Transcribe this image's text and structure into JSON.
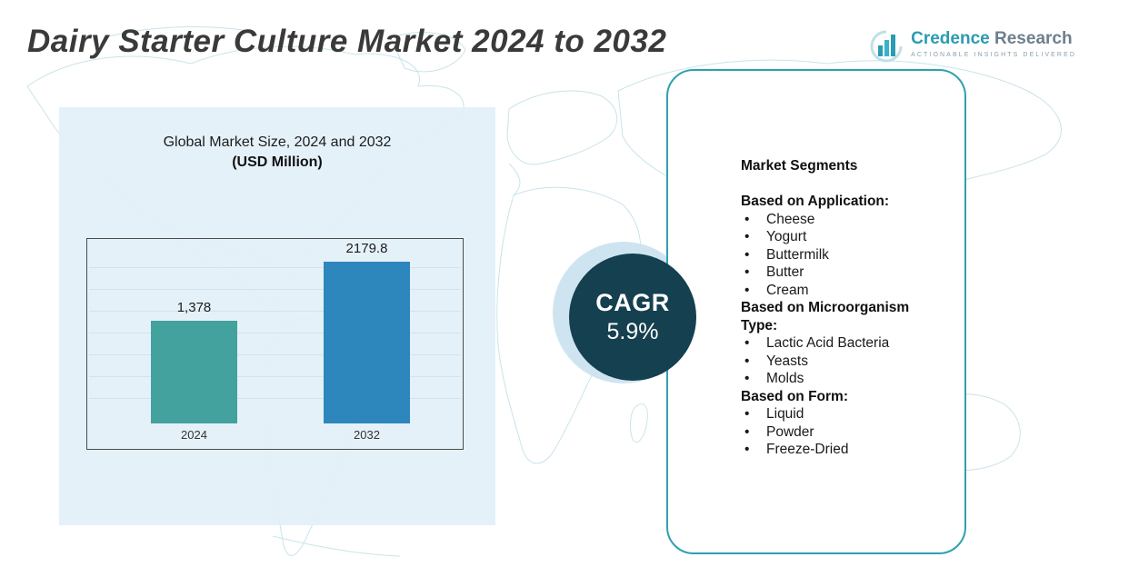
{
  "page": {
    "title": "Dairy Starter Culture Market 2024 to 2032"
  },
  "logo": {
    "name_primary": "Credence",
    "name_secondary": "Research",
    "tagline": "Actionable Insights Delivered"
  },
  "chart_panel": {
    "subtitle_line1": "Global Market Size, 2024 and 2032",
    "subtitle_line2": "(USD Million)"
  },
  "chart_data": {
    "type": "bar",
    "title": "Global Market Size, 2024 and 2032 (USD Million)",
    "categories": [
      "2024",
      "2032"
    ],
    "values": [
      1378,
      2179.8
    ],
    "value_labels": [
      "1,378",
      "2179.8"
    ],
    "xlabel": "",
    "ylabel": "USD Million",
    "ylim": [
      0,
      2400
    ],
    "grid": true,
    "legend": false,
    "bar_colors": [
      "#43a29d",
      "#2d87bd"
    ]
  },
  "cagr": {
    "label": "CAGR",
    "value": "5.9%"
  },
  "segments": {
    "title": "Market Segments",
    "groups": [
      {
        "heading": "Based on Application:",
        "items": [
          "Cheese",
          "Yogurt",
          "Buttermilk",
          "Butter",
          "Cream"
        ]
      },
      {
        "heading": "Based on Microorganism Type:",
        "items": [
          "Lactic Acid Bacteria",
          "Yeasts",
          "Molds"
        ]
      },
      {
        "heading": "Based on Form:",
        "items": [
          "Liquid",
          "Powder",
          "Freeze-Dried"
        ]
      }
    ]
  },
  "colors": {
    "accent_teal": "#2fa0b0",
    "bar_2024": "#43a29d",
    "bar_2032": "#2d87bd",
    "cagr_circle": "#14404f",
    "cagr_halo": "#cfe4f1",
    "panel_bg": "#e3f0f9",
    "map_stroke": "#c9e4ea",
    "title_color": "#3a3a3a"
  }
}
